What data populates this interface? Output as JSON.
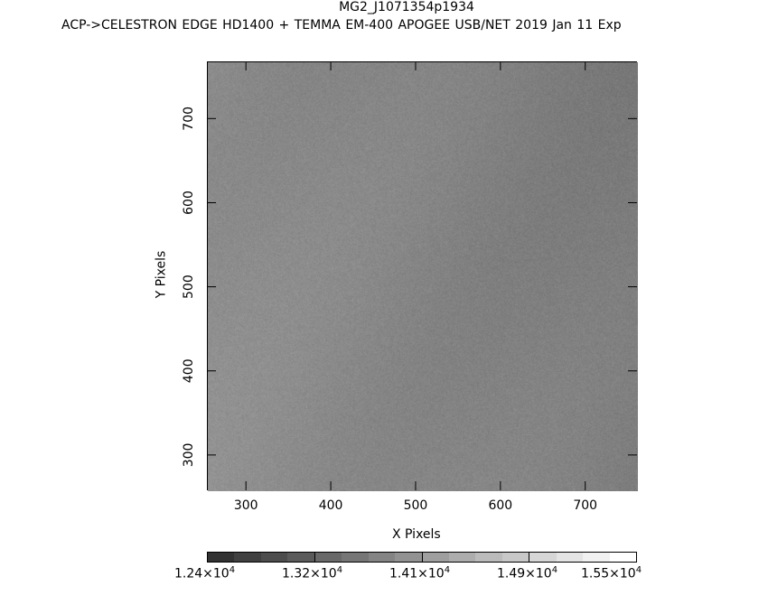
{
  "title": "MG2_J1071354p1934",
  "subtitle": "ACP->CELESTRON EDGE HD1400 + TEMMA EM-400 APOGEE USB/NET   2019 Jan 11    Exp",
  "chart_data": {
    "type": "heatmap",
    "title": "MG2_J1071354p1934",
    "xlabel": "X Pixels",
    "ylabel": "Y Pixels",
    "xlim": [
      254,
      761
    ],
    "ylim": [
      258,
      768
    ],
    "xticks": [
      300,
      400,
      500,
      600,
      700
    ],
    "yticks": [
      300,
      400,
      500,
      600,
      700
    ],
    "colormap": "grayscale",
    "colorbar": {
      "min": 12400,
      "max": 15500,
      "levels": 16,
      "tick_labels": [
        "1.24×10^4",
        "1.32×10^4",
        "1.41×10^4",
        "1.49×10^4",
        "1.55×10^4"
      ],
      "label_mantissas": [
        "1.24",
        "1.32",
        "1.41",
        "1.49",
        "1.55"
      ],
      "label_exp": "4"
    }
  }
}
